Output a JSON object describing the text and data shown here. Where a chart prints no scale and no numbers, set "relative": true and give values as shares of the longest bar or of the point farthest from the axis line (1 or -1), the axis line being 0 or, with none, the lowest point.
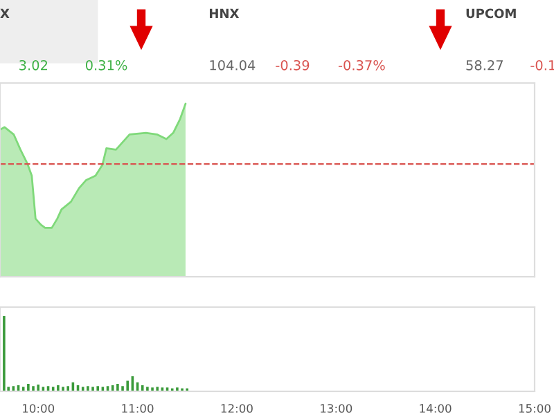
{
  "chart_data": [
    {
      "type": "area",
      "relative": true,
      "tick_labels": false,
      "xlim": [
        9.615,
        15.0
      ],
      "x": [
        9.615,
        9.661,
        9.753,
        9.821,
        9.89,
        9.935,
        9.973,
        10.027,
        10.069,
        10.137,
        10.192,
        10.234,
        10.33,
        10.412,
        10.481,
        10.577,
        10.646,
        10.687,
        10.783,
        10.92,
        11.085,
        11.195,
        11.291,
        11.36,
        11.429,
        11.484
      ],
      "series": [
        {
          "color": "#7fd97a",
          "values": [
            0.85,
            0.865,
            0.823,
            0.735,
            0.655,
            0.584,
            0.336,
            0.301,
            0.283,
            0.283,
            0.336,
            0.389,
            0.434,
            0.513,
            0.558,
            0.584,
            0.646,
            0.743,
            0.735,
            0.823,
            0.832,
            0.823,
            0.796,
            0.832,
            0.912,
            1.0
          ]
        }
      ],
      "ref_lines": [
        {
          "axis": "y",
          "value": 0.652,
          "color": "#d9534f",
          "line_style": "dashed"
        }
      ],
      "annotations": [
        "X",
        "3.02",
        "0.31%",
        "HNX",
        "104.04",
        "-0.39",
        "-0.37%",
        "UPCOM",
        "58.27",
        "-0.1"
      ]
    },
    {
      "type": "bar",
      "relative": true,
      "tick_labels": "x",
      "xlim": [
        9.615,
        15.0
      ],
      "xticks": [
        {
          "value": 10,
          "label": "10:00"
        },
        {
          "value": 11,
          "label": "11:00"
        },
        {
          "value": 12,
          "label": "12:00"
        },
        {
          "value": 13,
          "label": "13:00"
        },
        {
          "value": 14,
          "label": "14:00"
        },
        {
          "value": 15,
          "label": "15:00"
        }
      ],
      "x": [
        9.656,
        9.7,
        9.75,
        9.8,
        9.85,
        9.9,
        9.95,
        10.0,
        10.05,
        10.1,
        10.15,
        10.2,
        10.25,
        10.3,
        10.35,
        10.4,
        10.45,
        10.5,
        10.55,
        10.6,
        10.65,
        10.7,
        10.75,
        10.8,
        10.85,
        10.9,
        10.95,
        11.0,
        11.05,
        11.1,
        11.15,
        11.2,
        11.25,
        11.3,
        11.35,
        11.4,
        11.45,
        11.5
      ],
      "series": [
        {
          "color": "#3a9a3a",
          "values": [
            1.0,
            0.06,
            0.07,
            0.08,
            0.06,
            0.1,
            0.07,
            0.09,
            0.06,
            0.07,
            0.06,
            0.08,
            0.06,
            0.07,
            0.12,
            0.08,
            0.06,
            0.07,
            0.06,
            0.07,
            0.06,
            0.07,
            0.08,
            0.1,
            0.07,
            0.14,
            0.2,
            0.12,
            0.08,
            0.06,
            0.05,
            0.06,
            0.05,
            0.05,
            0.04,
            0.05,
            0.04,
            0.04
          ]
        }
      ]
    }
  ]
}
